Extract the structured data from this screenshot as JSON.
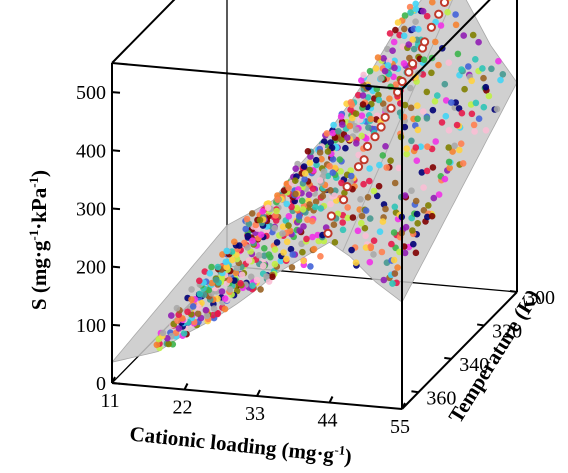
{
  "chart_data": {
    "type": "scatter",
    "subtype": "3d-scatter-with-surface",
    "title": "",
    "xlabel": "Cationic loading (mg·g⁻¹)",
    "ylabel": "Temperature (K)",
    "zlabel": "S (mg·g⁻¹·kPa⁻¹)",
    "xlabel_parts": {
      "main": "Cationic loading (mg·g",
      "sup": "-1",
      "end": ")"
    },
    "zlabel_parts": {
      "pre": "S (mg·g",
      "sup1": "-1",
      "mid": "·kPa",
      "sup2": "-1",
      "end": ")"
    },
    "ylabel_text": "Temperature (K)",
    "xlim": [
      11,
      55
    ],
    "ylim": [
      300,
      370
    ],
    "zlim": [
      0,
      550
    ],
    "x_ticks": [
      "11",
      "22",
      "33",
      "44",
      "55"
    ],
    "x_tick_values": [
      11,
      22,
      33,
      44,
      55
    ],
    "y_ticks": [
      "300",
      "320",
      "340",
      "360"
    ],
    "y_tick_values": [
      300,
      320,
      340,
      360
    ],
    "z_ticks": [
      "0",
      "100",
      "200",
      "300",
      "400",
      "500"
    ],
    "z_tick_values": [
      0,
      100,
      200,
      300,
      400,
      500
    ],
    "surface_color": "#c8c8c8",
    "highlight_color": "#c0392b",
    "optimum_marker_color": "#e8102a",
    "optimum": {
      "x": 46,
      "y": 300,
      "z": 545
    },
    "surface_profile_x": [
      11,
      18,
      22,
      26,
      30,
      33,
      36,
      40,
      44,
      47,
      51,
      55
    ],
    "surface_profile_z": [
      70,
      120,
      185,
      240,
      305,
      360,
      420,
      480,
      540,
      500,
      420,
      360
    ],
    "temperature_decay_per_10K": 0.07,
    "highlight_path": [
      {
        "x": 41,
        "y": 360,
        "z": 260
      },
      {
        "x": 42,
        "y": 345,
        "z": 330
      },
      {
        "x": 43,
        "y": 335,
        "z": 370
      },
      {
        "x": 44,
        "y": 325,
        "z": 420
      },
      {
        "x": 45,
        "y": 315,
        "z": 470
      },
      {
        "x": 46,
        "y": 305,
        "z": 520
      }
    ],
    "point_palette": [
      "#e6194b",
      "#3cb44b",
      "#ffd23f",
      "#4363d8",
      "#f58231",
      "#911eb4",
      "#42d4f4",
      "#f032e6",
      "#bfef45",
      "#fabed4",
      "#469990",
      "#9a6324",
      "#800000",
      "#808000",
      "#000075",
      "#a9a9a9",
      "#2ec4b6",
      "#ff7f50"
    ],
    "point_count": 900,
    "grid": false,
    "legend": "none"
  }
}
